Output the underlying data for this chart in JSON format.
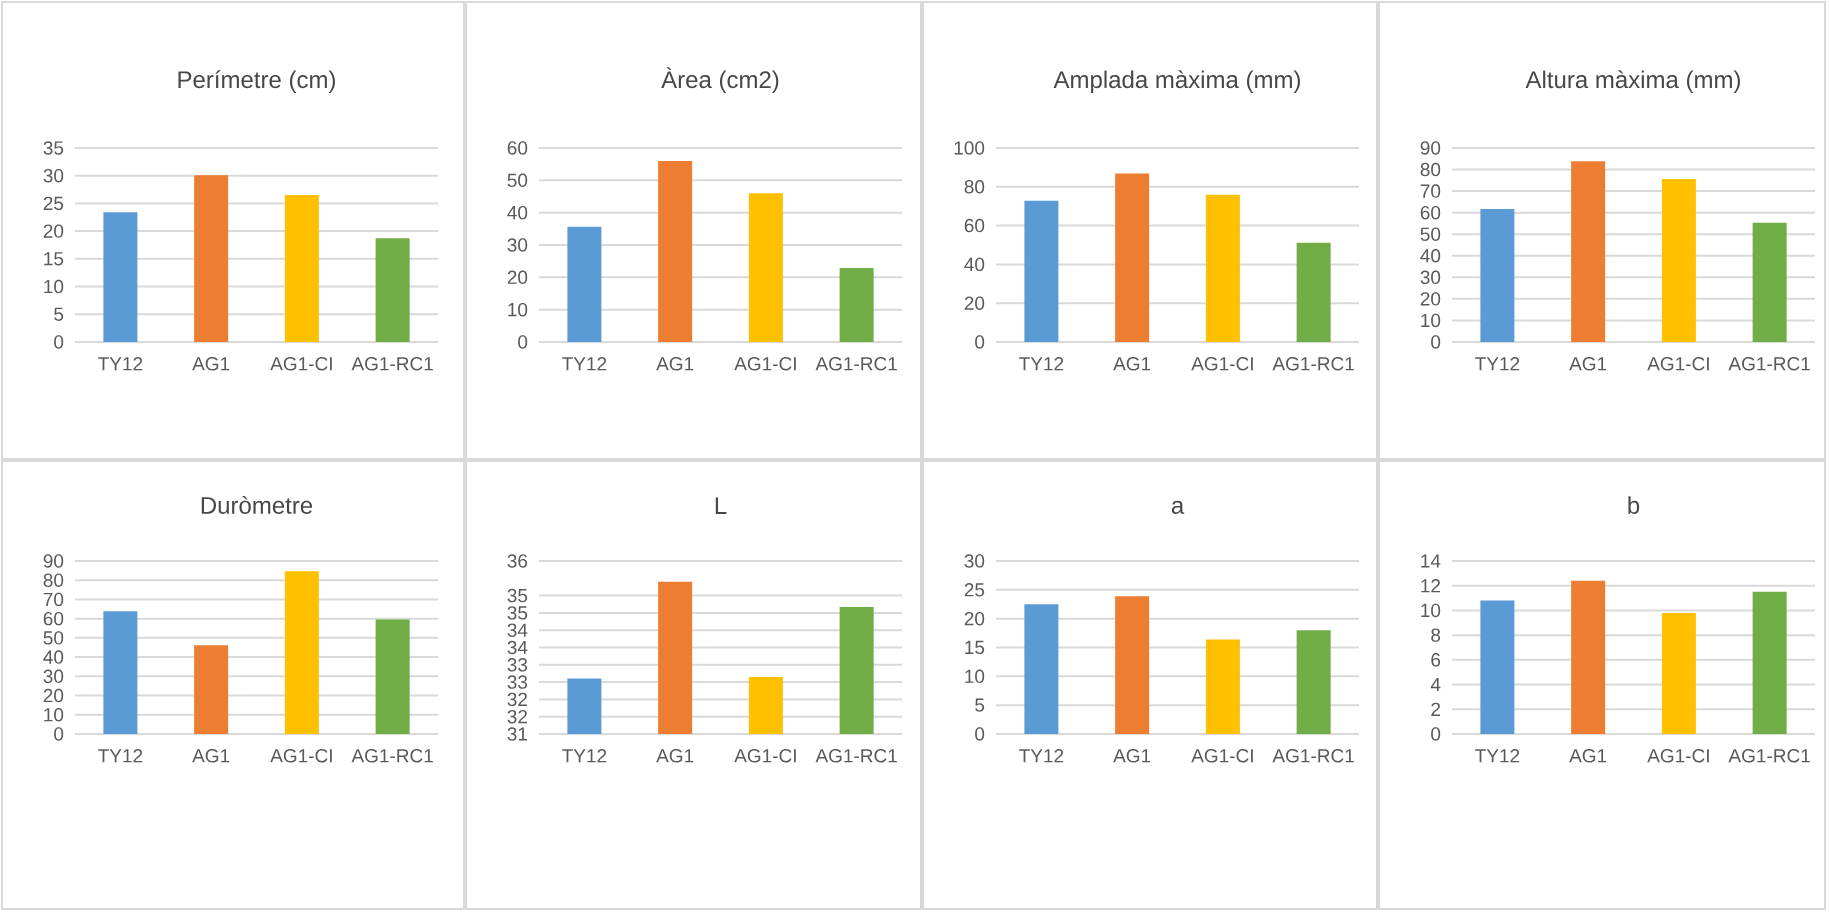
{
  "chart_data": [
    {
      "type": "bar",
      "title": "Perímetre (cm)",
      "categories": [
        "TY12",
        "AG1",
        "AG1-CI",
        "AG1-RC1"
      ],
      "values": [
        23.4,
        30.1,
        26.5,
        18.7
      ],
      "colors": [
        "#5b9bd5",
        "#ed7d31",
        "#ffc000",
        "#70ad47"
      ],
      "ylim": [
        0,
        35
      ],
      "yticks": [
        0,
        5,
        10,
        15,
        20,
        25,
        30,
        35
      ],
      "grid": "y"
    },
    {
      "type": "bar",
      "title": "Àrea (cm2)",
      "categories": [
        "TY12",
        "AG1",
        "AG1-CI",
        "AG1-RC1"
      ],
      "values": [
        35.6,
        56.0,
        46.0,
        22.9
      ],
      "colors": [
        "#5b9bd5",
        "#ed7d31",
        "#ffc000",
        "#70ad47"
      ],
      "ylim": [
        0,
        60
      ],
      "yticks": [
        0,
        10,
        20,
        30,
        40,
        50,
        60
      ],
      "grid": "y"
    },
    {
      "type": "bar",
      "title": "Amplada màxima (mm)",
      "categories": [
        "TY12",
        "AG1",
        "AG1-CI",
        "AG1-RC1"
      ],
      "values": [
        72.8,
        86.9,
        75.9,
        51.1
      ],
      "colors": [
        "#5b9bd5",
        "#ed7d31",
        "#ffc000",
        "#70ad47"
      ],
      "ylim": [
        0,
        100
      ],
      "yticks": [
        0,
        20,
        40,
        60,
        80,
        100
      ],
      "grid": "y"
    },
    {
      "type": "bar",
      "title": "Altura màxima (mm)",
      "categories": [
        "TY12",
        "AG1",
        "AG1-CI",
        "AG1-RC1"
      ],
      "values": [
        61.7,
        83.9,
        75.6,
        55.3
      ],
      "colors": [
        "#5b9bd5",
        "#ed7d31",
        "#ffc000",
        "#70ad47"
      ],
      "ylim": [
        0,
        90
      ],
      "yticks": [
        0,
        10,
        20,
        30,
        40,
        50,
        60,
        70,
        80,
        90
      ],
      "grid": "y"
    },
    {
      "type": "bar",
      "title": "Duròmetre",
      "categories": [
        "TY12",
        "AG1",
        "AG1-CI",
        "AG1-RC1"
      ],
      "values": [
        63.8,
        46.2,
        84.6,
        59.5
      ],
      "colors": [
        "#5b9bd5",
        "#ed7d31",
        "#ffc000",
        "#70ad47"
      ],
      "ylim": [
        0,
        90
      ],
      "yticks": [
        0,
        10,
        20,
        30,
        40,
        50,
        60,
        70,
        80,
        90
      ],
      "grid": "y"
    },
    {
      "type": "bar",
      "title": "L",
      "categories": [
        "TY12",
        "AG1",
        "AG1-CI",
        "AG1-RC1"
      ],
      "values": [
        32.6,
        35.4,
        32.65,
        34.67
      ],
      "colors": [
        "#5b9bd5",
        "#ed7d31",
        "#ffc000",
        "#70ad47"
      ],
      "ylim": [
        31,
        36
      ],
      "yticks": [
        31,
        {
          "value": 31.5,
          "label": "32"
        },
        32,
        {
          "value": 32.5,
          "label": "33"
        },
        33,
        {
          "value": 33.5,
          "label": "34"
        },
        34,
        {
          "value": 34.5,
          "label": "35"
        },
        35,
        36
      ],
      "grid": "y"
    },
    {
      "type": "bar",
      "title": "a",
      "categories": [
        "TY12",
        "AG1",
        "AG1-CI",
        "AG1-RC1"
      ],
      "values": [
        22.5,
        23.9,
        16.4,
        18.0
      ],
      "colors": [
        "#5b9bd5",
        "#ed7d31",
        "#ffc000",
        "#70ad47"
      ],
      "ylim": [
        0,
        30
      ],
      "yticks": [
        0,
        5,
        10,
        15,
        20,
        25,
        30
      ],
      "grid": "y"
    },
    {
      "type": "bar",
      "title": "b",
      "categories": [
        "TY12",
        "AG1",
        "AG1-CI",
        "AG1-RC1"
      ],
      "values": [
        10.8,
        12.4,
        9.8,
        11.5
      ],
      "colors": [
        "#5b9bd5",
        "#ed7d31",
        "#ffc000",
        "#70ad47"
      ],
      "ylim": [
        0,
        14
      ],
      "yticks": [
        0,
        2,
        4,
        6,
        8,
        10,
        12,
        14
      ],
      "grid": "y"
    }
  ]
}
